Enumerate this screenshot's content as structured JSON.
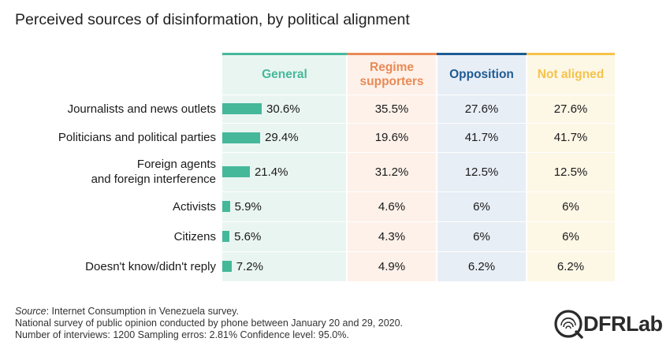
{
  "title": "Perceived sources of disinformation, by political alignment",
  "chart_data": {
    "type": "table",
    "columns": [
      {
        "key": "general",
        "label_lines": [
          "General"
        ],
        "color": "#45b89a",
        "bg": "#e9f5f1"
      },
      {
        "key": "regime",
        "label_lines": [
          "Regime",
          "supporters"
        ],
        "color": "#e98a55",
        "bg": "#fdf1ea"
      },
      {
        "key": "opposition",
        "label_lines": [
          "Opposition"
        ],
        "color": "#1d5b93",
        "bg": "#e8eef6"
      },
      {
        "key": "not_aligned",
        "label_lines": [
          "Not aligned"
        ],
        "color": "#f5c34a",
        "bg": "#fdf7e6"
      }
    ],
    "rows": [
      {
        "label_lines": [
          "Journalists and news outlets"
        ],
        "values": [
          30.6,
          35.5,
          27.6,
          27.6
        ],
        "display": [
          "30.6%",
          "35.5%",
          "27.6%",
          "27.6%"
        ]
      },
      {
        "label_lines": [
          "Politicians and political parties"
        ],
        "values": [
          29.4,
          19.6,
          41.7,
          41.7
        ],
        "display": [
          "29.4%",
          "19.6%",
          "41.7%",
          "41.7%"
        ]
      },
      {
        "label_lines": [
          "Foreign agents",
          "and foreign interference"
        ],
        "values": [
          21.4,
          31.2,
          12.5,
          12.5
        ],
        "display": [
          "21.4%",
          "31.2%",
          "12.5%",
          "12.5%"
        ]
      },
      {
        "label_lines": [
          "Activists"
        ],
        "values": [
          5.9,
          4.6,
          6,
          6
        ],
        "display": [
          "5.9%",
          "4.6%",
          "6%",
          "6%"
        ]
      },
      {
        "label_lines": [
          "Citizens"
        ],
        "values": [
          5.6,
          4.3,
          6,
          6
        ],
        "display": [
          "5.6%",
          "4.3%",
          "6%",
          "6%"
        ]
      },
      {
        "label_lines": [
          "Doesn't know/didn't reply"
        ],
        "values": [
          7.2,
          4.9,
          6.2,
          6.2
        ],
        "display": [
          "7.2%",
          "4.9%",
          "6.2%",
          "6.2%"
        ]
      }
    ]
  },
  "footer": {
    "source_label": "Source",
    "source_text": ": Internet Consumption in Venezuela survey.",
    "line2": "National survey of public opinion conducted by phone between January 20 and 29, 2020.",
    "line3": "Number of interviews: 1200 Sampling erros: 2.81% Confidence level: 95.0%."
  },
  "logo": {
    "text": "DFRLab",
    "icon": "fingerprint-icon"
  }
}
